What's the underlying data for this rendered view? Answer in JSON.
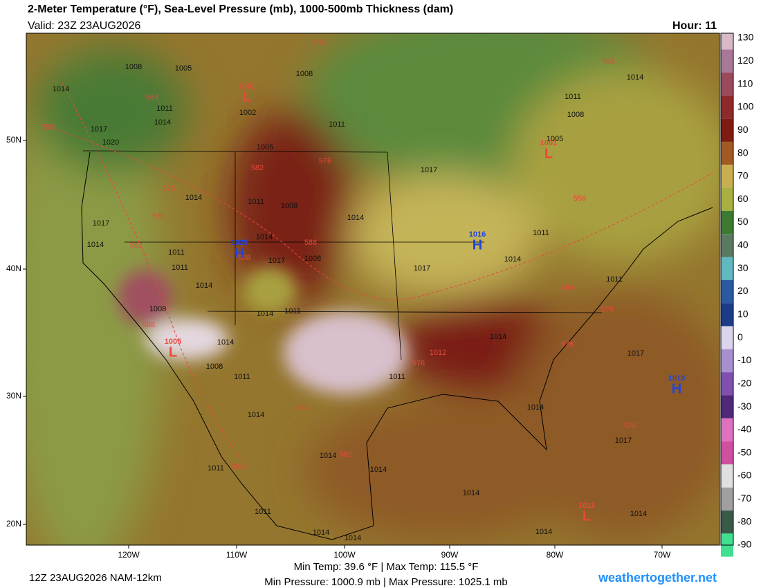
{
  "header": {
    "title": "2-Meter Temperature (°F), Sea-Level Pressure (mb), 1000-500mb Thickness (dam)",
    "valid": "Valid: 23Z 23AUG2026",
    "hour": "Hour: 11"
  },
  "colorbar": {
    "ticks": [
      130,
      120,
      110,
      100,
      90,
      80,
      70,
      60,
      50,
      40,
      30,
      20,
      10,
      0,
      -10,
      -20,
      -30,
      -40,
      -50,
      -60,
      -70,
      -80,
      -90
    ],
    "colors": [
      "#d9b8c8",
      "#a87898",
      "#9a4a5c",
      "#8e2a2a",
      "#7e1c12",
      "#a25a22",
      "#c8b050",
      "#a8b040",
      "#3c7a32",
      "#5a7a60",
      "#60b8c0",
      "#2a5aa0",
      "#1c3c88",
      "#dcd4ec",
      "#a890d0",
      "#8050b0",
      "#502878",
      "#e070c0",
      "#d050a0",
      "#e0e0e0",
      "#a0a0a0",
      "#3a5a48",
      "#40e090"
    ]
  },
  "axes": {
    "lon_labels": [
      "120W",
      "110W",
      "100W",
      "90W",
      "80W",
      "70W"
    ],
    "lat_labels": [
      "50N",
      "40N",
      "30N",
      "20N"
    ]
  },
  "centers": [
    {
      "letter": "H",
      "value": "1025"
    },
    {
      "letter": "H",
      "value": "1016"
    },
    {
      "letter": "H",
      "value": "1019"
    },
    {
      "letter": "L",
      "value": "1001"
    },
    {
      "letter": "L",
      "value": "1001"
    },
    {
      "letter": "L",
      "value": "1005"
    },
    {
      "letter": "L",
      "value": "1011"
    }
  ],
  "isobar_labels": [
    "1008",
    "1005",
    "1014",
    "1011",
    "1014",
    "1017",
    "1020",
    "1002",
    "1008",
    "1011",
    "1005",
    "1017",
    "1014",
    "1011",
    "1008",
    "1014",
    "1017",
    "1014",
    "1011",
    "1011",
    "1014",
    "1017",
    "1008",
    "1017",
    "1014",
    "1011",
    "1011",
    "1011",
    "1008",
    "1005",
    "1014",
    "1008",
    "1014",
    "1011",
    "1014",
    "1008",
    "1011",
    "1011",
    "1014",
    "1017",
    "1014",
    "1014",
    "1014",
    "1011",
    "1011",
    "1014",
    "1014",
    "1017",
    "1014",
    "1014",
    "1014",
    "1014",
    "1014"
  ],
  "thickness_labels": [
    "570",
    "564",
    "558",
    "582",
    "576",
    "570",
    "576",
    "582",
    "588",
    "588",
    "588",
    "588",
    "582",
    "582",
    "576",
    "576",
    "564",
    "570",
    "558",
    "558",
    "576",
    "1012"
  ],
  "footer": {
    "run": "12Z 23AUG2026 NAM-12km",
    "temp": "Min Temp:  39.6 °F | Max Temp: 115.5 °F",
    "pressure": "Min Pressure: 1000.9 mb | Max Pressure: 1025.1 mb",
    "brand": "weathertogether.net"
  }
}
